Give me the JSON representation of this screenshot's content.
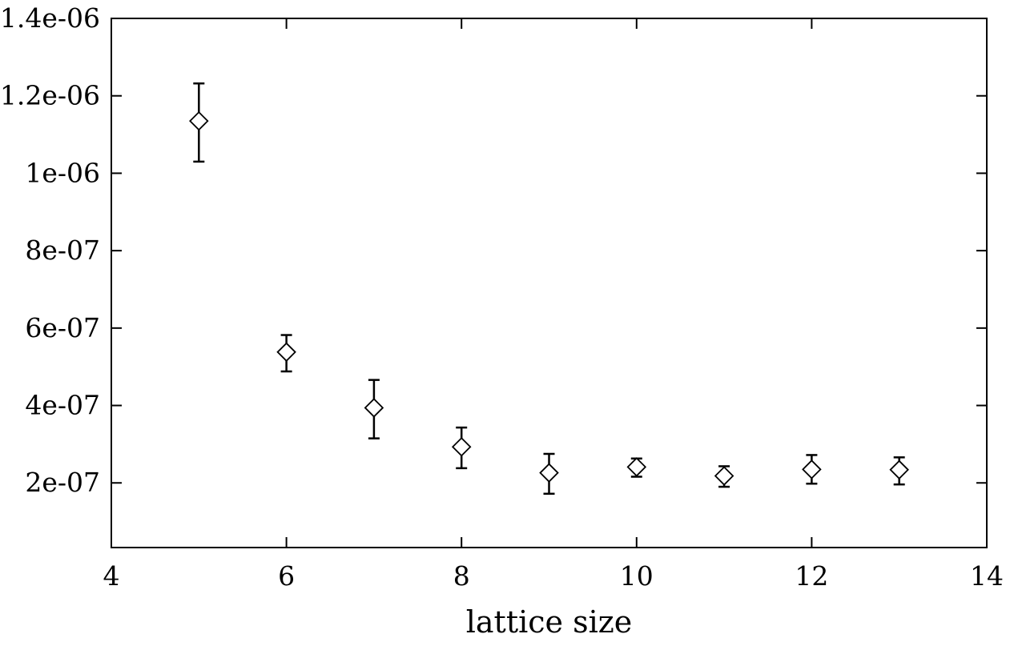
{
  "chart_data": {
    "type": "scatter",
    "xlabel": "lattice size",
    "ylabel": "",
    "title": "",
    "xlim": [
      4,
      14
    ],
    "ylim": [
      3.3e-08,
      1.4e-06
    ],
    "x_ticks": [
      4,
      6,
      8,
      10,
      12,
      14
    ],
    "x_tick_labels": [
      "4",
      "6",
      "8",
      "10",
      "12",
      "14"
    ],
    "y_ticks": [
      2e-07,
      4e-07,
      6e-07,
      8e-07,
      1e-06,
      1.2e-06,
      1.4e-06
    ],
    "y_tick_labels": [
      "2e-07",
      "4e-07",
      "6e-07",
      "8e-07",
      "1e-06",
      "1.2e-06",
      "1.4e-06"
    ],
    "grid": false,
    "marker": "diamond",
    "series": [
      {
        "points": [
          {
            "x": 5,
            "y": 1.135e-06,
            "err_low": 1.03e-06,
            "err_high": 1.232e-06
          },
          {
            "x": 6,
            "y": 5.38e-07,
            "err_low": 4.88e-07,
            "err_high": 5.82e-07
          },
          {
            "x": 7,
            "y": 3.94e-07,
            "err_low": 3.15e-07,
            "err_high": 4.66e-07
          },
          {
            "x": 8,
            "y": 2.93e-07,
            "err_low": 2.38e-07,
            "err_high": 3.43e-07
          },
          {
            "x": 9,
            "y": 2.26e-07,
            "err_low": 1.72e-07,
            "err_high": 2.75e-07
          },
          {
            "x": 10,
            "y": 2.41e-07,
            "err_low": 2.16e-07,
            "err_high": 2.63e-07
          },
          {
            "x": 11,
            "y": 2.18e-07,
            "err_low": 1.9e-07,
            "err_high": 2.43e-07
          },
          {
            "x": 12,
            "y": 2.35e-07,
            "err_low": 1.98e-07,
            "err_high": 2.72e-07
          },
          {
            "x": 13,
            "y": 2.34e-07,
            "err_low": 1.96e-07,
            "err_high": 2.66e-07
          }
        ]
      }
    ]
  }
}
